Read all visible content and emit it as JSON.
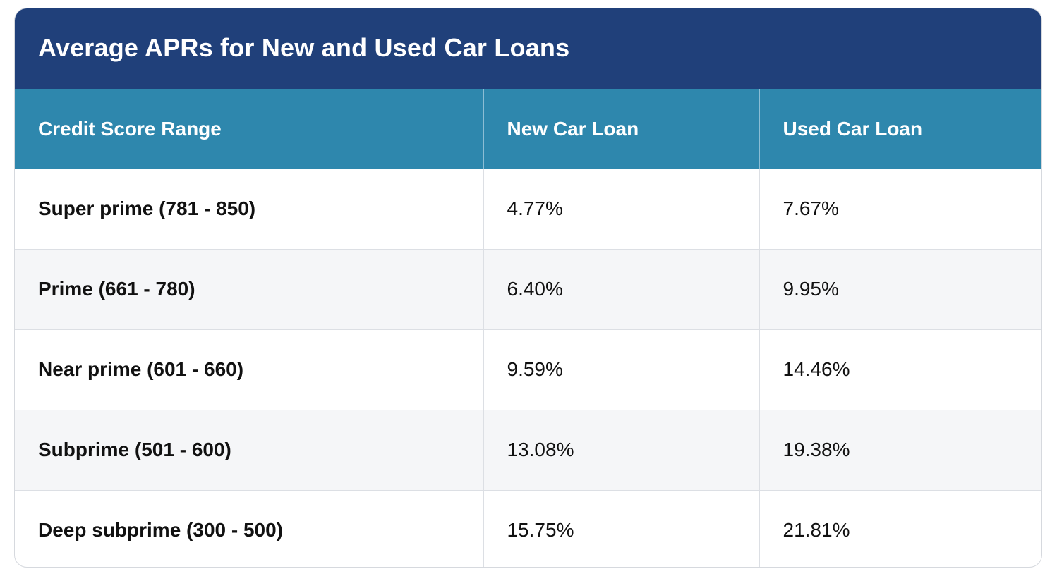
{
  "title": "Average APRs for New and Used Car Loans",
  "table": {
    "headers": [
      "Credit Score Range",
      "New Car Loan",
      "Used Car Loan"
    ],
    "rows": [
      [
        "Super prime (781 - 850)",
        "4.77%",
        "7.67%"
      ],
      [
        "Prime (661 - 780)",
        "6.40%",
        "9.95%"
      ],
      [
        "Near prime (601 - 660)",
        "9.59%",
        "14.46%"
      ],
      [
        "Subprime (501 - 600)",
        "13.08%",
        "19.38%"
      ],
      [
        "Deep subprime (300 - 500)",
        "15.75%",
        "21.81%"
      ]
    ]
  },
  "colors": {
    "title_bar": "#20407a",
    "header_row": "#2e87ad",
    "alt_row": "#f5f6f8"
  }
}
